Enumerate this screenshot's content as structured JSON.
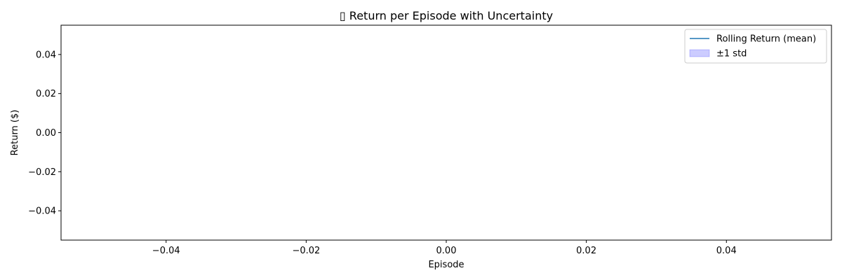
{
  "chart_data": {
    "type": "line",
    "title": "▯ Return per Episode with Uncertainty",
    "xlabel": "Episode",
    "ylabel": "Return ($)",
    "xlim": [
      -0.055,
      0.055
    ],
    "ylim": [
      -0.055,
      0.055
    ],
    "x_ticks": [
      -0.04,
      -0.02,
      0.0,
      0.02,
      0.04
    ],
    "x_tick_labels": [
      "−0.04",
      "−0.02",
      "0.00",
      "0.02",
      "0.04"
    ],
    "y_ticks": [
      0.04,
      0.02,
      0.0,
      -0.02,
      -0.04
    ],
    "y_tick_labels": [
      "0.04",
      "0.02",
      "0.00",
      "−0.02",
      "−0.04"
    ],
    "grid": false,
    "legend_position": "upper right",
    "legend": [
      {
        "label": "Rolling Return (mean)",
        "kind": "line",
        "color": "#1f77b4"
      },
      {
        "label": "±1 std",
        "kind": "band",
        "color": "#0000ff"
      }
    ],
    "series": [
      {
        "name": "Rolling Return (mean)",
        "x": [],
        "y": []
      },
      {
        "name": "±1 std",
        "x": [],
        "y_lower": [],
        "y_upper": []
      }
    ]
  }
}
